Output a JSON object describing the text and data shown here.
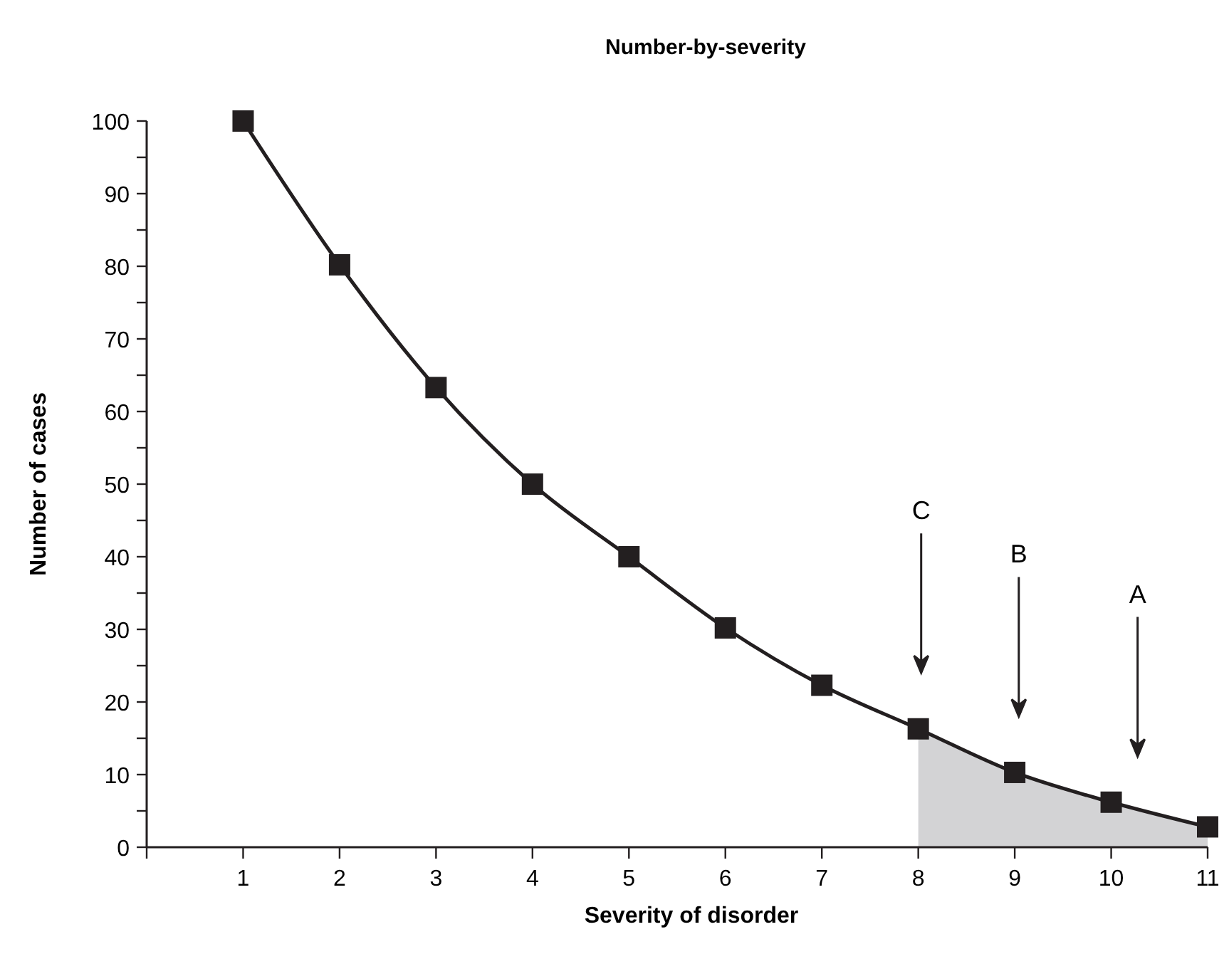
{
  "chart_data": {
    "type": "line",
    "title": "Number-by-severity",
    "xlabel": "Severity of disorder",
    "ylabel": "Number of cases",
    "xlim": [
      0,
      11
    ],
    "ylim": [
      0,
      100
    ],
    "xticks": [
      {
        "value": 0,
        "label": null
      },
      1,
      2,
      3,
      4,
      5,
      6,
      7,
      8,
      9,
      10,
      11
    ],
    "yticks": [
      0,
      {
        "value": 5,
        "label": null
      },
      10,
      {
        "value": 15,
        "label": null
      },
      20,
      {
        "value": 25,
        "label": null
      },
      30,
      {
        "value": 35,
        "label": null
      },
      40,
      {
        "value": 45,
        "label": null
      },
      50,
      {
        "value": 55,
        "label": null
      },
      60,
      {
        "value": 65,
        "label": null
      },
      70,
      {
        "value": 75,
        "label": null
      },
      80,
      {
        "value": 85,
        "label": null
      },
      90,
      {
        "value": 95,
        "label": null
      },
      100
    ],
    "grid": false,
    "line_style": "solid",
    "series": [
      {
        "type": "area",
        "color": "#d3d3d5",
        "x": [
          8,
          9,
          10,
          11
        ],
        "values": [
          16.3,
          10.3,
          6.2,
          2.8
        ]
      },
      {
        "color": "#231f20",
        "marker": "square",
        "x": [
          1,
          2,
          3,
          4,
          5,
          6,
          7,
          8,
          9,
          10,
          11
        ],
        "values": [
          100,
          80.2,
          63.3,
          50,
          40,
          30.2,
          22.3,
          16.3,
          10.3,
          6.2,
          2.8
        ]
      }
    ],
    "annotations": [
      "C",
      "B",
      "A"
    ]
  }
}
